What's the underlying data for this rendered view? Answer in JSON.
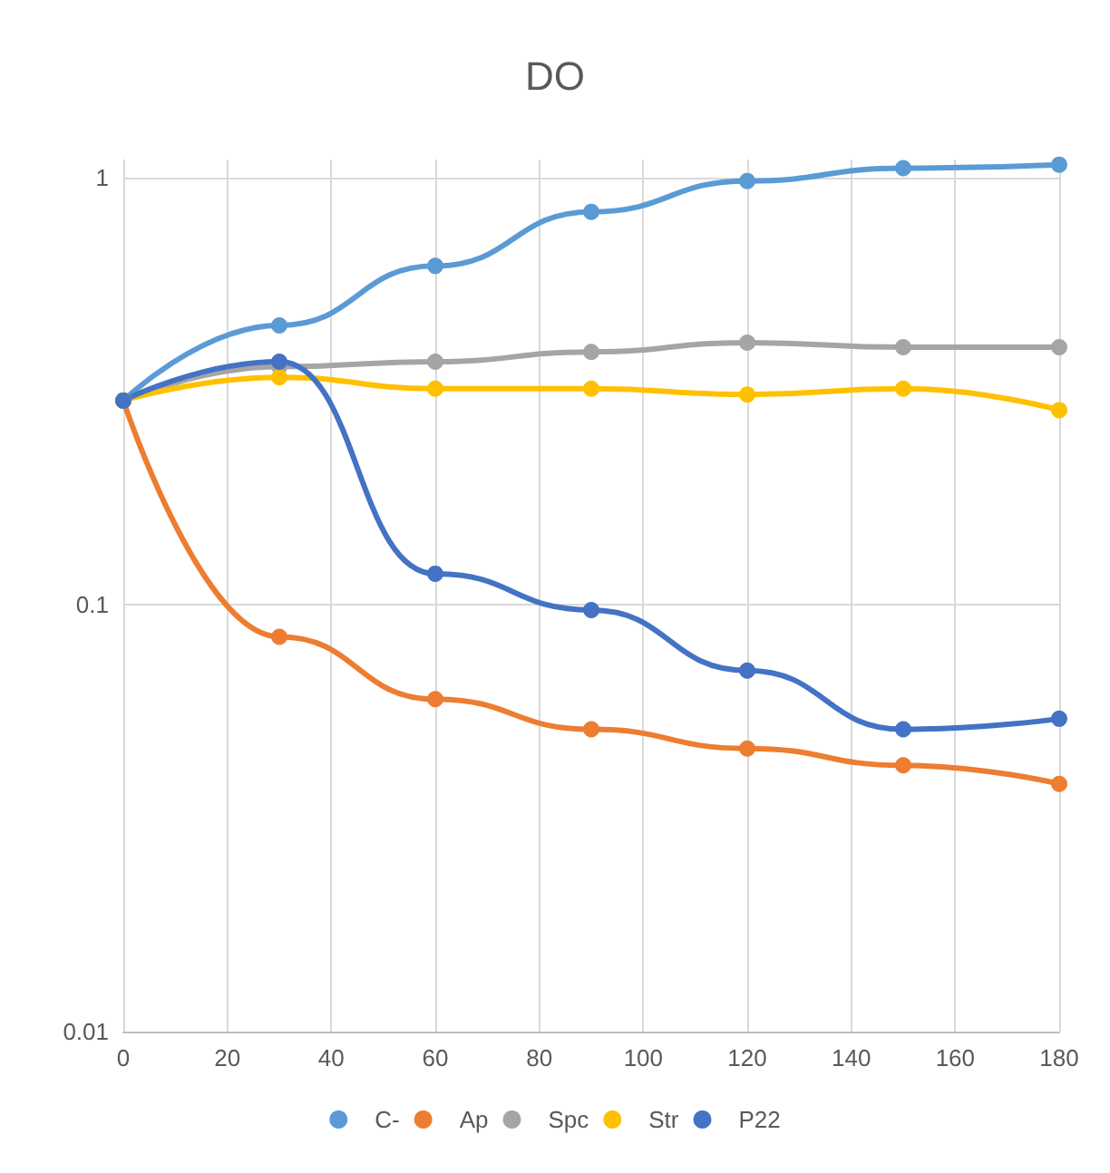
{
  "chart_data": {
    "type": "line",
    "title": "DO",
    "x": [
      0,
      30,
      60,
      90,
      120,
      150,
      180
    ],
    "series": [
      {
        "name": "C-",
        "color": "#5b9bd5",
        "values": [
          0.3,
          0.45,
          0.62,
          0.83,
          0.98,
          1.05,
          1.07
        ]
      },
      {
        "name": "Ap",
        "color": "#ed7d31",
        "values": [
          0.3,
          0.084,
          0.06,
          0.051,
          0.046,
          0.042,
          0.038
        ]
      },
      {
        "name": "Spc",
        "color": "#a5a5a5",
        "values": [
          0.3,
          0.36,
          0.37,
          0.39,
          0.41,
          0.4,
          0.4
        ]
      },
      {
        "name": "Str",
        "color": "#ffc000",
        "values": [
          0.3,
          0.34,
          0.32,
          0.32,
          0.31,
          0.32,
          0.285
        ]
      },
      {
        "name": "P22",
        "color": "#4472c4",
        "values": [
          0.3,
          0.37,
          0.118,
          0.097,
          0.07,
          0.051,
          0.054
        ]
      }
    ],
    "xlim": [
      0,
      180
    ],
    "xticks": [
      0,
      20,
      40,
      60,
      80,
      100,
      120,
      140,
      160,
      180
    ],
    "ylim": [
      0.01,
      1.1
    ],
    "yticks": [
      0.01,
      0.1,
      1
    ],
    "log": true,
    "grid": true,
    "legend": "bottom",
    "marker": "circle",
    "line_style": "solid"
  }
}
